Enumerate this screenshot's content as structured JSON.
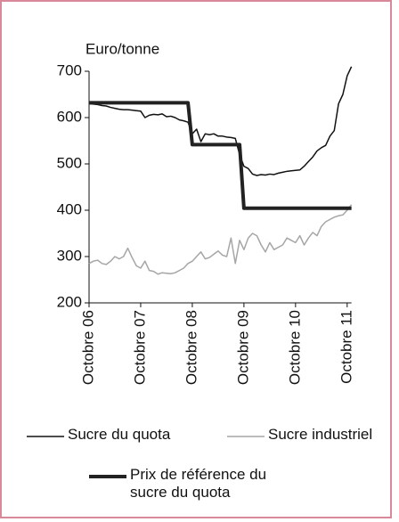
{
  "chart_data": {
    "type": "line",
    "y_label": "Euro/tonne",
    "categories": [
      "Octobre 06",
      null,
      null,
      null,
      null,
      null,
      null,
      null,
      null,
      null,
      null,
      null,
      "Octobre 07",
      null,
      null,
      null,
      null,
      null,
      null,
      null,
      null,
      null,
      null,
      null,
      "Octobre 08",
      null,
      null,
      null,
      null,
      null,
      null,
      null,
      null,
      null,
      null,
      null,
      "Octobre 09",
      null,
      null,
      null,
      null,
      null,
      null,
      null,
      null,
      null,
      null,
      null,
      "Octobre 10",
      null,
      null,
      null,
      null,
      null,
      null,
      null,
      null,
      null,
      null,
      null,
      "Octobre 11",
      null
    ],
    "ylim": [
      200,
      700
    ],
    "yticks": [
      200,
      300,
      400,
      500,
      600,
      700
    ],
    "series": [
      {
        "name": "Sucre du quota",
        "color": "#111111",
        "width": 1.5,
        "values": [
          630,
          629,
          628,
          626,
          625,
          622,
          620,
          618,
          617,
          617,
          616,
          615,
          614,
          600,
          605,
          607,
          606,
          608,
          602,
          603,
          600,
          595,
          593,
          590,
          565,
          575,
          548,
          565,
          563,
          565,
          560,
          560,
          558,
          557,
          555,
          520,
          495,
          490,
          478,
          475,
          477,
          476,
          478,
          477,
          480,
          482,
          484,
          485,
          486,
          487,
          495,
          505,
          515,
          528,
          535,
          540,
          560,
          572,
          630,
          650,
          690,
          710
        ]
      },
      {
        "name": "Sucre industriel",
        "color": "#a6a6a6",
        "width": 1.5,
        "values": [
          285,
          290,
          292,
          285,
          283,
          290,
          300,
          295,
          300,
          318,
          298,
          280,
          275,
          290,
          270,
          268,
          262,
          265,
          264,
          263,
          265,
          270,
          275,
          285,
          290,
          300,
          310,
          295,
          298,
          305,
          312,
          303,
          300,
          340,
          285,
          335,
          315,
          340,
          350,
          345,
          325,
          310,
          330,
          315,
          320,
          325,
          340,
          335,
          330,
          345,
          325,
          340,
          352,
          345,
          365,
          375,
          380,
          385,
          388,
          390,
          400,
          412
        ]
      },
      {
        "name": "Prix de référence du sucre du quota",
        "color": "#222222",
        "width": 4,
        "values": [
          631.9,
          631.9,
          631.9,
          631.9,
          631.9,
          631.9,
          631.9,
          631.9,
          631.9,
          631.9,
          631.9,
          631.9,
          631.9,
          631.9,
          631.9,
          631.9,
          631.9,
          631.9,
          631.9,
          631.9,
          631.9,
          631.9,
          631.9,
          631.9,
          541.5,
          541.5,
          541.5,
          541.5,
          541.5,
          541.5,
          541.5,
          541.5,
          541.5,
          541.5,
          541.5,
          541.5,
          404.4,
          404.4,
          404.4,
          404.4,
          404.4,
          404.4,
          404.4,
          404.4,
          404.4,
          404.4,
          404.4,
          404.4,
          404.4,
          404.4,
          404.4,
          404.4,
          404.4,
          404.4,
          404.4,
          404.4,
          404.4,
          404.4,
          404.4,
          404.4,
          404.4,
          404.4
        ]
      }
    ]
  }
}
